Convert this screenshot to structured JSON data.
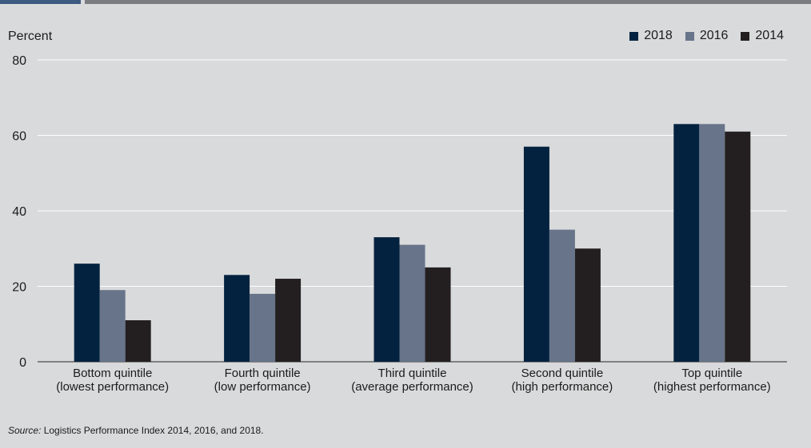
{
  "chart_data": {
    "type": "bar",
    "ylabel": "Percent",
    "ylim": [
      0,
      80
    ],
    "yticks": [
      0,
      20,
      40,
      60,
      80
    ],
    "grid": true,
    "legend_position": "top-right",
    "categories": [
      [
        "Bottom quintile",
        "(lowest performance)"
      ],
      [
        "Fourth quintile",
        "(low performance)"
      ],
      [
        "Third quintile",
        "(average performance)"
      ],
      [
        "Second quintile",
        "(high performance)"
      ],
      [
        "Top quintile",
        "(highest performance)"
      ]
    ],
    "series": [
      {
        "name": "2018",
        "color": "#03223f",
        "values": [
          26,
          23,
          33,
          57,
          63
        ]
      },
      {
        "name": "2016",
        "color": "#67748a",
        "values": [
          19,
          18,
          31,
          35,
          63
        ]
      },
      {
        "name": "2014",
        "color": "#231f20",
        "values": [
          11,
          22,
          25,
          30,
          61
        ]
      }
    ]
  },
  "source": {
    "label": "Source:",
    "text": " Logistics Performance Index 2014, 2016, and 2018."
  }
}
